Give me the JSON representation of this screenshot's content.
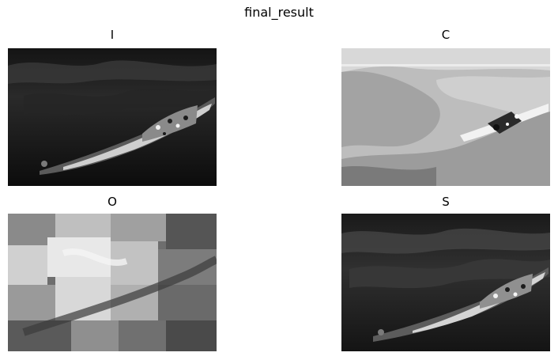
{
  "figure": {
    "title": "final_result",
    "panels": [
      {
        "title": "I",
        "colormap": "gray"
      },
      {
        "title": "C",
        "colormap": "gray"
      },
      {
        "title": "O",
        "colormap": "gray"
      },
      {
        "title": "S",
        "colormap": "gray"
      }
    ]
  }
}
